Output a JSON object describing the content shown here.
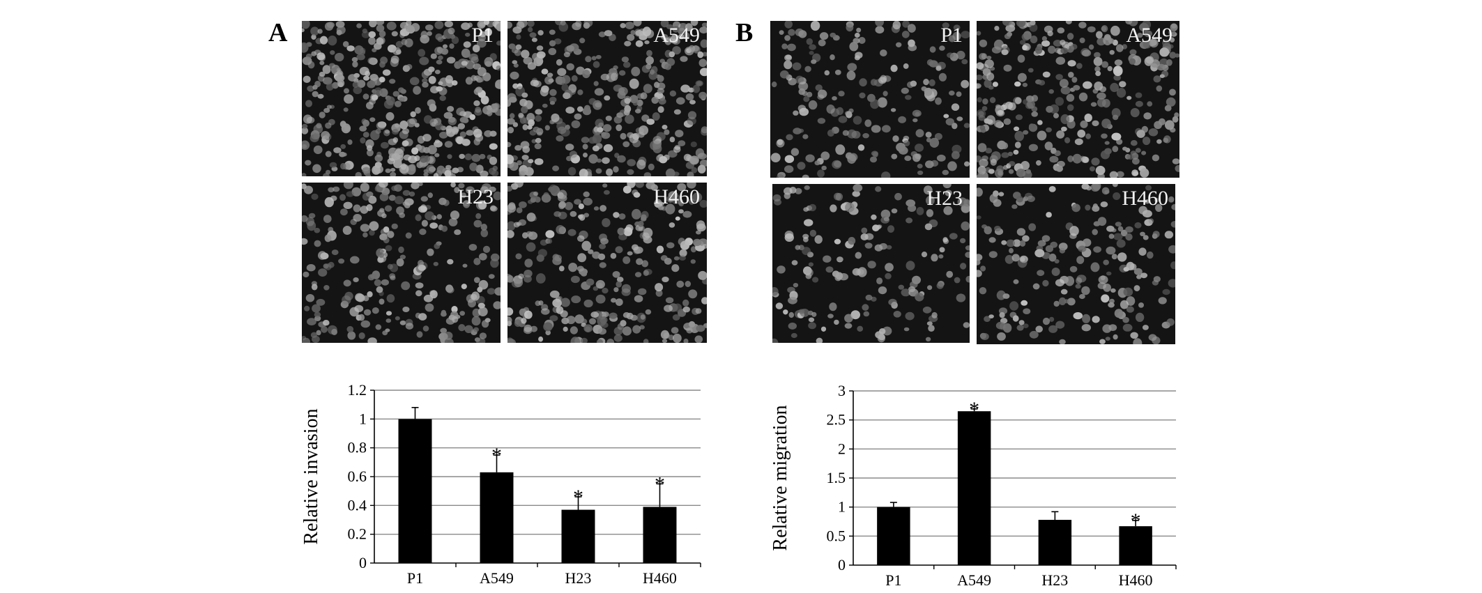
{
  "panels": [
    {
      "letter": "A",
      "images": [
        {
          "label": "P1"
        },
        {
          "label": "A549"
        },
        {
          "label": "H23"
        },
        {
          "label": "H460"
        }
      ]
    },
    {
      "letter": "B",
      "images": [
        {
          "label": "P1"
        },
        {
          "label": "A549"
        },
        {
          "label": "H23"
        },
        {
          "label": "H460"
        }
      ]
    }
  ],
  "chart_data": [
    {
      "type": "bar",
      "title": "",
      "xlabel": "",
      "ylabel": "Relative invasion",
      "categories": [
        "P1",
        "A549",
        "H23",
        "H460"
      ],
      "values": [
        1.0,
        0.63,
        0.37,
        0.39
      ],
      "errors": [
        0.08,
        0.12,
        0.09,
        0.16
      ],
      "significant": [
        false,
        true,
        true,
        true
      ],
      "significance_marker": "*",
      "ylim": [
        0,
        1.2
      ],
      "yticks": [
        0,
        0.2,
        0.4,
        0.6,
        0.8,
        1,
        1.2
      ],
      "ytick_labels": [
        "0",
        "0.2",
        "0.4",
        "0.6",
        "0.8",
        "1",
        "1.2"
      ],
      "grid": true,
      "bar_color": "#000000"
    },
    {
      "type": "bar",
      "title": "",
      "xlabel": "",
      "ylabel": "Relative migration",
      "categories": [
        "P1",
        "A549",
        "H23",
        "H460"
      ],
      "values": [
        1.0,
        2.65,
        0.78,
        0.67
      ],
      "errors": [
        0.08,
        0.04,
        0.14,
        0.1
      ],
      "significant": [
        false,
        true,
        false,
        true
      ],
      "significance_marker": "*",
      "ylim": [
        0,
        3
      ],
      "yticks": [
        0,
        0.5,
        1,
        1.5,
        2,
        2.5,
        3
      ],
      "ytick_labels": [
        "0",
        "0.5",
        "1",
        "1.5",
        "2",
        "2.5",
        "3"
      ],
      "grid": true,
      "bar_color": "#000000"
    }
  ]
}
